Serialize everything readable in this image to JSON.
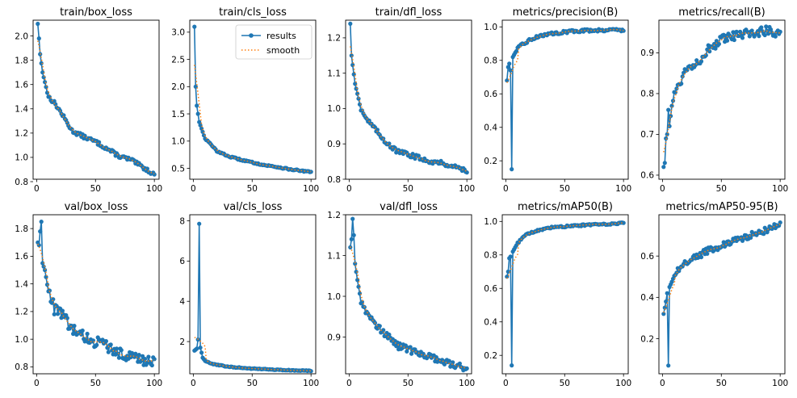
{
  "figure": {
    "series_names": [
      "results",
      "smooth"
    ],
    "colors": {
      "results": "#1f77b4",
      "smooth": "#ff7f0e"
    },
    "x_range": [
      1,
      100
    ]
  },
  "chart_data": [
    {
      "type": "line",
      "title": "train/box_loss",
      "xlim": [
        -3,
        104
      ],
      "ylim": [
        0.82,
        2.13
      ],
      "xticks": [
        "0",
        "50",
        "100"
      ],
      "yticks": [
        "0.8",
        "1.0",
        "1.2",
        "1.4",
        "1.6",
        "1.8",
        "2.0"
      ],
      "legend": false,
      "key_points": [
        [
          1,
          2.1
        ],
        [
          2,
          1.98
        ],
        [
          3,
          1.85
        ],
        [
          5,
          1.7
        ],
        [
          10,
          1.5
        ],
        [
          15,
          1.45
        ],
        [
          20,
          1.38
        ],
        [
          30,
          1.22
        ],
        [
          40,
          1.17
        ],
        [
          50,
          1.13
        ],
        [
          60,
          1.07
        ],
        [
          70,
          1.01
        ],
        [
          80,
          0.98
        ],
        [
          90,
          0.92
        ],
        [
          100,
          0.86
        ]
      ],
      "noise": 0.015
    },
    {
      "type": "line",
      "title": "train/cls_loss",
      "xlim": [
        -3,
        104
      ],
      "ylim": [
        0.3,
        3.22
      ],
      "xticks": [
        "0",
        "50",
        "100"
      ],
      "yticks": [
        "0.5",
        "1.0",
        "1.5",
        "2.0",
        "2.5",
        "3.0"
      ],
      "legend": true,
      "legend_position": "top-right",
      "key_points": [
        [
          1,
          3.1
        ],
        [
          2,
          2.0
        ],
        [
          3,
          1.65
        ],
        [
          5,
          1.35
        ],
        [
          10,
          1.05
        ],
        [
          20,
          0.82
        ],
        [
          30,
          0.72
        ],
        [
          40,
          0.66
        ],
        [
          50,
          0.61
        ],
        [
          60,
          0.56
        ],
        [
          70,
          0.53
        ],
        [
          80,
          0.49
        ],
        [
          90,
          0.46
        ],
        [
          100,
          0.43
        ]
      ],
      "noise": 0.012
    },
    {
      "type": "line",
      "title": "train/dfl_loss",
      "xlim": [
        -3,
        104
      ],
      "ylim": [
        0.8,
        1.25
      ],
      "xticks": [
        "0",
        "50",
        "100"
      ],
      "yticks": [
        "0.8",
        "0.9",
        "1.0",
        "1.1",
        "1.2"
      ],
      "legend": false,
      "key_points": [
        [
          1,
          1.24
        ],
        [
          2,
          1.15
        ],
        [
          5,
          1.07
        ],
        [
          10,
          1.0
        ],
        [
          15,
          0.97
        ],
        [
          20,
          0.95
        ],
        [
          30,
          0.91
        ],
        [
          40,
          0.88
        ],
        [
          50,
          0.87
        ],
        [
          60,
          0.86
        ],
        [
          70,
          0.85
        ],
        [
          80,
          0.845
        ],
        [
          90,
          0.835
        ],
        [
          100,
          0.825
        ]
      ],
      "noise": 0.006
    },
    {
      "type": "line",
      "title": "metrics/precision(B)",
      "xlim": [
        -3,
        104
      ],
      "ylim": [
        0.09,
        1.04
      ],
      "xticks": [
        "0",
        "50",
        "100"
      ],
      "yticks": [
        "0.2",
        "0.4",
        "0.6",
        "0.8",
        "1.0"
      ],
      "legend": false,
      "key_points": [
        [
          1,
          0.68
        ],
        [
          2,
          0.76
        ],
        [
          3,
          0.78
        ],
        [
          4,
          0.74
        ],
        [
          5,
          0.15
        ],
        [
          6,
          0.82
        ],
        [
          10,
          0.87
        ],
        [
          15,
          0.9
        ],
        [
          20,
          0.92
        ],
        [
          30,
          0.95
        ],
        [
          40,
          0.96
        ],
        [
          50,
          0.97
        ],
        [
          60,
          0.975
        ],
        [
          70,
          0.98
        ],
        [
          80,
          0.98
        ],
        [
          90,
          0.985
        ],
        [
          100,
          0.98
        ]
      ],
      "noise": 0.008
    },
    {
      "type": "line",
      "title": "metrics/recall(B)",
      "xlim": [
        -3,
        104
      ],
      "ylim": [
        0.59,
        0.98
      ],
      "xticks": [
        "0",
        "50",
        "100"
      ],
      "yticks": [
        "0.6",
        "0.7",
        "0.8",
        "0.9"
      ],
      "legend": false,
      "key_points": [
        [
          1,
          0.62
        ],
        [
          2,
          0.63
        ],
        [
          3,
          0.69
        ],
        [
          4,
          0.7
        ],
        [
          5,
          0.76
        ],
        [
          6,
          0.72
        ],
        [
          8,
          0.77
        ],
        [
          10,
          0.8
        ],
        [
          15,
          0.83
        ],
        [
          20,
          0.86
        ],
        [
          30,
          0.88
        ],
        [
          40,
          0.91
        ],
        [
          50,
          0.93
        ],
        [
          60,
          0.94
        ],
        [
          70,
          0.945
        ],
        [
          80,
          0.95
        ],
        [
          90,
          0.955
        ],
        [
          100,
          0.95
        ]
      ],
      "noise": 0.012
    },
    {
      "type": "line",
      "title": "val/box_loss",
      "xlim": [
        -3,
        104
      ],
      "ylim": [
        0.75,
        1.9
      ],
      "xticks": [
        "0",
        "50",
        "100"
      ],
      "yticks": [
        "0.8",
        "1.0",
        "1.2",
        "1.4",
        "1.6",
        "1.8"
      ],
      "legend": false,
      "key_points": [
        [
          1,
          1.7
        ],
        [
          2,
          1.68
        ],
        [
          3,
          1.78
        ],
        [
          4,
          1.85
        ],
        [
          5,
          1.55
        ],
        [
          7,
          1.5
        ],
        [
          10,
          1.35
        ],
        [
          13,
          1.28
        ],
        [
          15,
          1.22
        ],
        [
          20,
          1.2
        ],
        [
          30,
          1.07
        ],
        [
          40,
          1.02
        ],
        [
          50,
          0.98
        ],
        [
          60,
          0.95
        ],
        [
          70,
          0.9
        ],
        [
          80,
          0.88
        ],
        [
          90,
          0.85
        ],
        [
          100,
          0.83
        ]
      ],
      "noise": 0.04
    },
    {
      "type": "line",
      "title": "val/cls_loss",
      "xlim": [
        -3,
        104
      ],
      "ylim": [
        0.4,
        8.3
      ],
      "xticks": [
        "0",
        "50",
        "100"
      ],
      "yticks": [
        "2",
        "4",
        "6",
        "8"
      ],
      "legend": false,
      "key_points": [
        [
          1,
          1.55
        ],
        [
          2,
          1.6
        ],
        [
          3,
          1.65
        ],
        [
          4,
          2.1
        ],
        [
          5,
          7.85
        ],
        [
          6,
          1.7
        ],
        [
          8,
          1.2
        ],
        [
          10,
          1.05
        ],
        [
          15,
          0.9
        ],
        [
          20,
          0.85
        ],
        [
          30,
          0.75
        ],
        [
          40,
          0.7
        ],
        [
          50,
          0.66
        ],
        [
          60,
          0.63
        ],
        [
          70,
          0.6
        ],
        [
          80,
          0.58
        ],
        [
          90,
          0.56
        ],
        [
          100,
          0.55
        ]
      ],
      "noise": 0.02
    },
    {
      "type": "line",
      "title": "val/dfl_loss",
      "xlim": [
        -3,
        104
      ],
      "ylim": [
        0.81,
        1.2
      ],
      "xticks": [
        "0",
        "50",
        "100"
      ],
      "yticks": [
        "0.9",
        "1.0",
        "1.1",
        "1.2"
      ],
      "legend": false,
      "key_points": [
        [
          1,
          1.12
        ],
        [
          2,
          1.14
        ],
        [
          3,
          1.19
        ],
        [
          4,
          1.15
        ],
        [
          5,
          1.08
        ],
        [
          7,
          1.04
        ],
        [
          10,
          0.99
        ],
        [
          15,
          0.96
        ],
        [
          20,
          0.94
        ],
        [
          30,
          0.91
        ],
        [
          40,
          0.88
        ],
        [
          50,
          0.87
        ],
        [
          60,
          0.86
        ],
        [
          70,
          0.85
        ],
        [
          80,
          0.84
        ],
        [
          90,
          0.83
        ],
        [
          100,
          0.825
        ]
      ],
      "noise": 0.008
    },
    {
      "type": "line",
      "title": "metrics/mAP50(B)",
      "xlim": [
        -3,
        104
      ],
      "ylim": [
        0.09,
        1.04
      ],
      "xticks": [
        "0",
        "50",
        "100"
      ],
      "yticks": [
        "0.2",
        "0.4",
        "0.6",
        "0.8",
        "1.0"
      ],
      "legend": false,
      "key_points": [
        [
          1,
          0.67
        ],
        [
          2,
          0.7
        ],
        [
          3,
          0.78
        ],
        [
          4,
          0.79
        ],
        [
          5,
          0.14
        ],
        [
          6,
          0.82
        ],
        [
          10,
          0.87
        ],
        [
          15,
          0.91
        ],
        [
          20,
          0.93
        ],
        [
          30,
          0.95
        ],
        [
          40,
          0.965
        ],
        [
          50,
          0.97
        ],
        [
          60,
          0.975
        ],
        [
          70,
          0.98
        ],
        [
          80,
          0.985
        ],
        [
          90,
          0.985
        ],
        [
          100,
          0.99
        ]
      ],
      "noise": 0.005
    },
    {
      "type": "line",
      "title": "metrics/mAP50-95(B)",
      "xlim": [
        -3,
        104
      ],
      "ylim": [
        0.03,
        0.8
      ],
      "xticks": [
        "0",
        "50",
        "100"
      ],
      "yticks": [
        "0.2",
        "0.4",
        "0.6"
      ],
      "legend": false,
      "key_points": [
        [
          1,
          0.32
        ],
        [
          2,
          0.35
        ],
        [
          3,
          0.38
        ],
        [
          4,
          0.42
        ],
        [
          5,
          0.07
        ],
        [
          6,
          0.45
        ],
        [
          10,
          0.5
        ],
        [
          15,
          0.55
        ],
        [
          20,
          0.57
        ],
        [
          30,
          0.6
        ],
        [
          40,
          0.63
        ],
        [
          50,
          0.65
        ],
        [
          60,
          0.67
        ],
        [
          70,
          0.69
        ],
        [
          80,
          0.71
        ],
        [
          90,
          0.73
        ],
        [
          100,
          0.75
        ]
      ],
      "noise": 0.015
    }
  ]
}
